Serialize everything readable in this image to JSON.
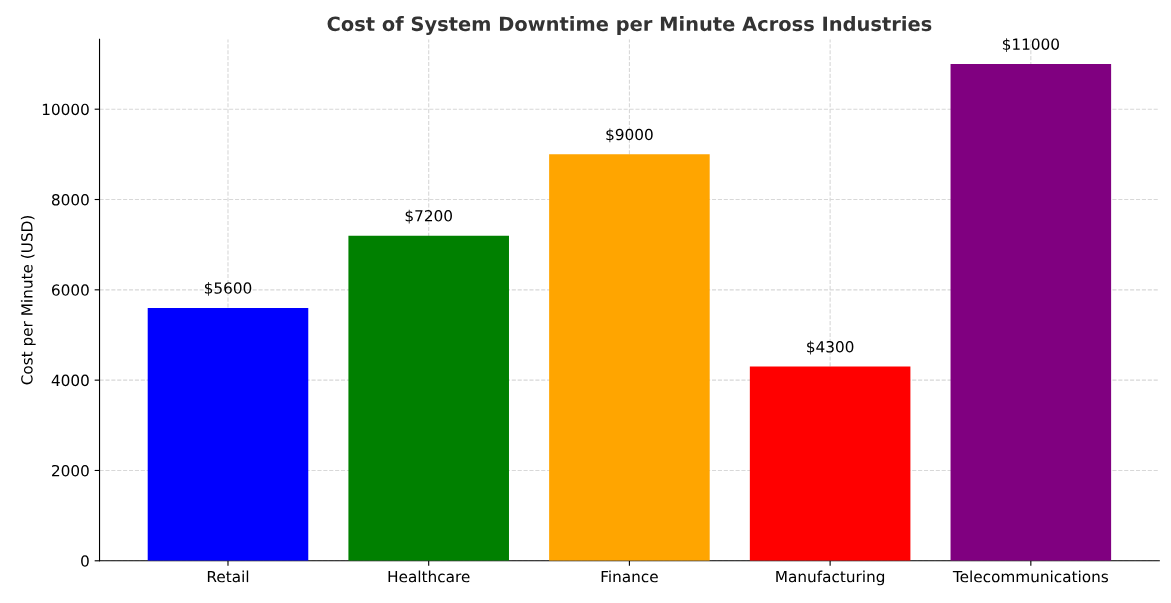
{
  "chart_data": {
    "type": "bar",
    "title": "Cost of System Downtime per Minute Across Industries",
    "ylabel": "Cost per Minute (USD)",
    "categories": [
      "Retail",
      "Healthcare",
      "Finance",
      "Manufacturing",
      "Telecommunications"
    ],
    "values": [
      5600,
      7200,
      9000,
      4300,
      11000
    ],
    "colors": [
      "#0000ff",
      "#008000",
      "#ffa500",
      "#ff0000",
      "#800080"
    ],
    "value_labels": [
      "$5600",
      "$7200",
      "$9000",
      "$4300",
      "$11000"
    ],
    "ylim": [
      0,
      11550
    ],
    "yticks": [
      0,
      2000,
      4000,
      6000,
      8000,
      10000
    ],
    "grid": true
  }
}
